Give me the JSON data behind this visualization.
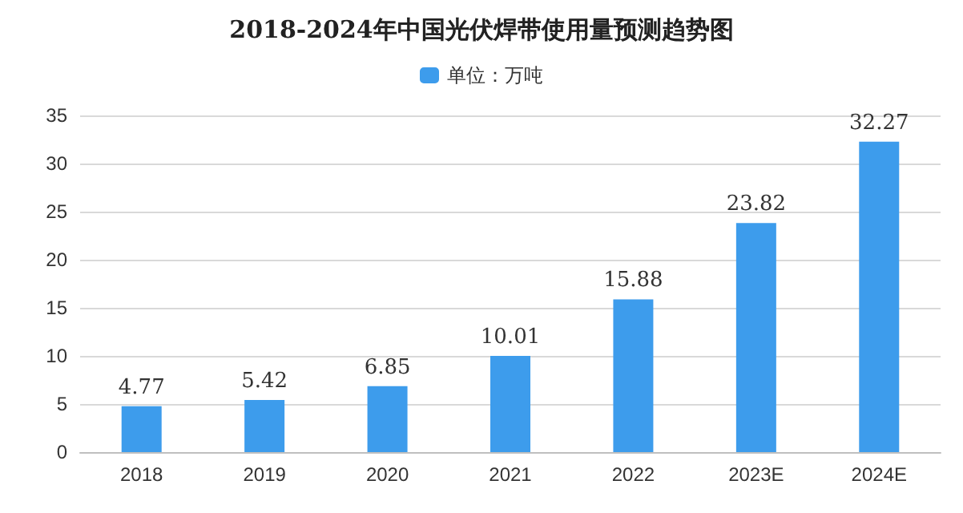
{
  "chart_data": {
    "type": "bar",
    "title": "2018-2024年中国光伏焊带使用量预测趋势图",
    "categories": [
      "2018",
      "2019",
      "2020",
      "2021",
      "2022",
      "2023E",
      "2024E"
    ],
    "series": [
      {
        "name": "单位：万吨",
        "color": "#3d9cec",
        "values": [
          4.77,
          5.42,
          6.85,
          10.01,
          15.88,
          23.82,
          32.27
        ]
      }
    ],
    "ylim": [
      0,
      35
    ],
    "yticks": [
      0,
      5,
      10,
      15,
      20,
      25,
      30,
      35
    ],
    "grid": "y",
    "legend": "top",
    "data_labels": true
  }
}
